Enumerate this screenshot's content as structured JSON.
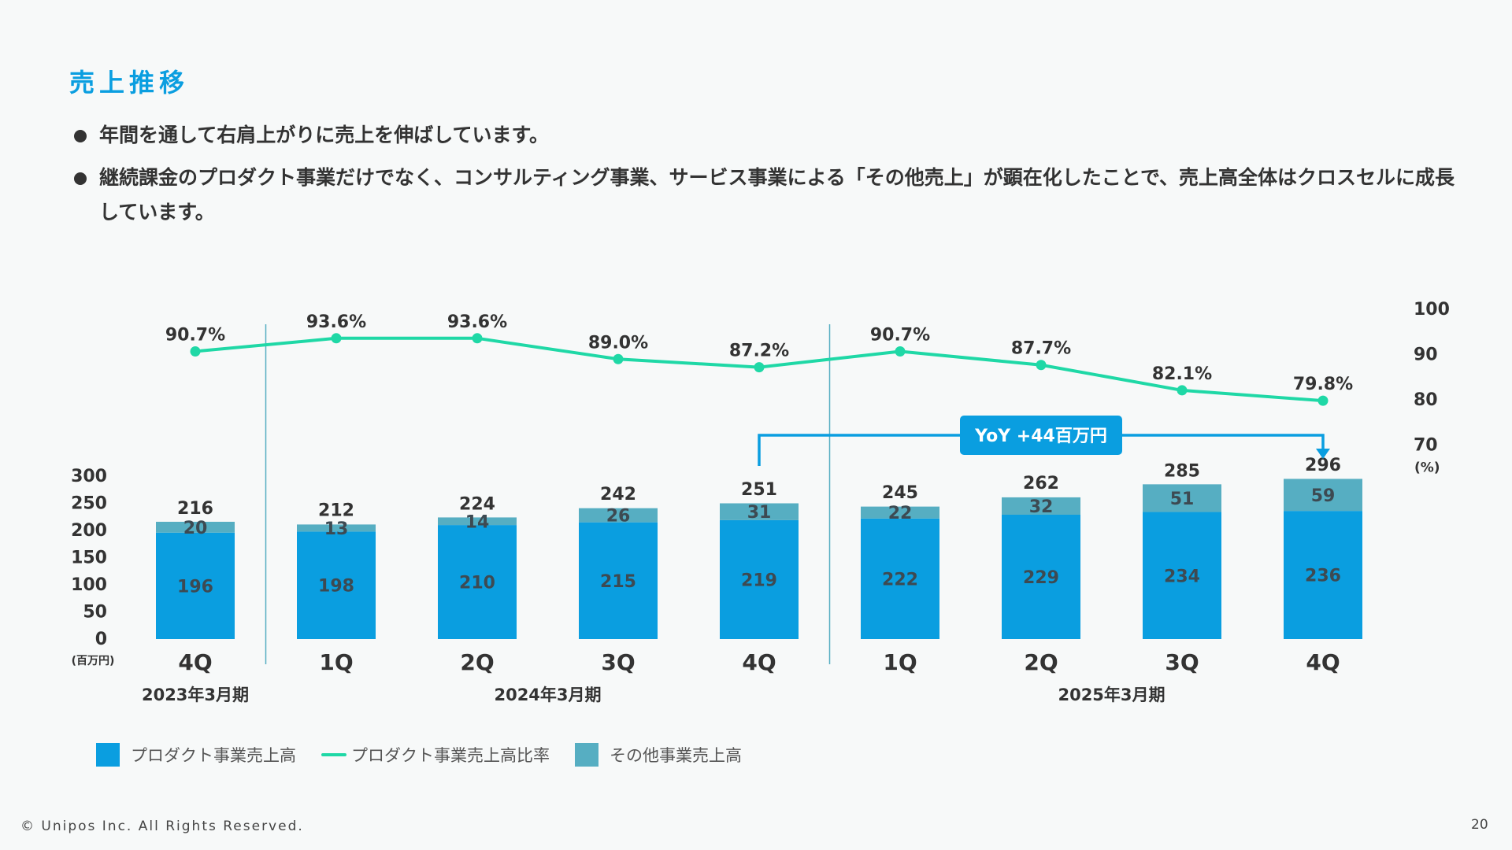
{
  "header": {
    "title": "売上推移"
  },
  "bullets": [
    "年間を通して右肩上がりに売上を伸ばしています。",
    "継続課金のプロダクト事業だけでなく、コンサルティング事業、サービス事業による「その他売上」が顕在化したことで、売上高全体はクロスセルに成長しています。"
  ],
  "chart_data": {
    "type": "bar",
    "stacked": true,
    "categories": [
      "4Q",
      "1Q",
      "2Q",
      "3Q",
      "4Q",
      "1Q",
      "2Q",
      "3Q",
      "4Q"
    ],
    "period_groups": [
      {
        "label": "2023年3月期",
        "start": 0,
        "end": 0
      },
      {
        "label": "2024年3月期",
        "start": 1,
        "end": 4
      },
      {
        "label": "2025年3月期",
        "start": 5,
        "end": 8
      }
    ],
    "series": [
      {
        "name": "プロダクト事業売上高",
        "type": "bar",
        "axis": "left",
        "color": "#0a9ee0",
        "values": [
          196,
          198,
          210,
          215,
          219,
          222,
          229,
          234,
          236
        ]
      },
      {
        "name": "その他事業売上高",
        "type": "bar",
        "axis": "left",
        "color": "#56aec2",
        "values": [
          20,
          13,
          14,
          26,
          31,
          22,
          32,
          51,
          59
        ]
      },
      {
        "name": "プロダクト事業売上高比率",
        "type": "line",
        "axis": "right",
        "color": "#1fd8a6",
        "values": [
          90.7,
          93.6,
          93.6,
          89.0,
          87.2,
          90.7,
          87.7,
          82.1,
          79.8
        ],
        "labels": [
          "90.7%",
          "93.6%",
          "93.6%",
          "89.0%",
          "87.2%",
          "90.7%",
          "87.7%",
          "82.1%",
          "79.8%"
        ]
      }
    ],
    "totals": [
      216,
      212,
      224,
      242,
      251,
      245,
      262,
      285,
      296
    ],
    "ylim": [
      0,
      300
    ],
    "yticks": [
      0,
      50,
      100,
      150,
      200,
      250,
      300
    ],
    "yunit": "(百万円)",
    "y2ticks": [
      70,
      80,
      90,
      100
    ],
    "y2unit": "(%)",
    "annotation": {
      "text": "YoY +44百万円",
      "from_index": 4,
      "to_index": 8,
      "color": "#0a9ee0"
    },
    "legend_position": "bottom-left"
  },
  "legend": {
    "items": [
      {
        "label": "プロダクト事業売上高",
        "kind": "box",
        "color": "#0a9ee0"
      },
      {
        "label": "プロダクト事業売上高比率",
        "kind": "line",
        "color": "#1fd8a6"
      },
      {
        "label": "その他事業売上高",
        "kind": "box",
        "color": "#56aec2"
      }
    ]
  },
  "footer": {
    "copyright": "© Unipos Inc. All Rights Reserved.",
    "page_number": "20"
  }
}
